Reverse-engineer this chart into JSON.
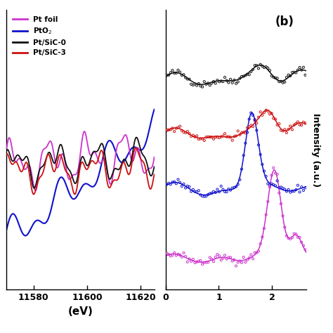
{
  "panel_a": {
    "xlabel": "(eV)",
    "xlim": [
      11570,
      11625
    ],
    "xticks": [
      11580,
      11600,
      11620
    ],
    "legend_labels": [
      "Pt foil",
      "PtO$_2$",
      "Pt/SiC-0",
      "Pt/SiC-3"
    ],
    "colors": [
      "#cc33cc",
      "#1111cc",
      "#111111",
      "#cc1111"
    ]
  },
  "panel_b": {
    "title": "(b)",
    "ylabel": "Intensity (a.u.)",
    "xlim": [
      0,
      2.65
    ],
    "xticks": [
      0,
      1,
      2
    ],
    "colors": [
      "#111111",
      "#cc1111",
      "#1111cc",
      "#cc33cc"
    ]
  },
  "background_color": "#ffffff"
}
